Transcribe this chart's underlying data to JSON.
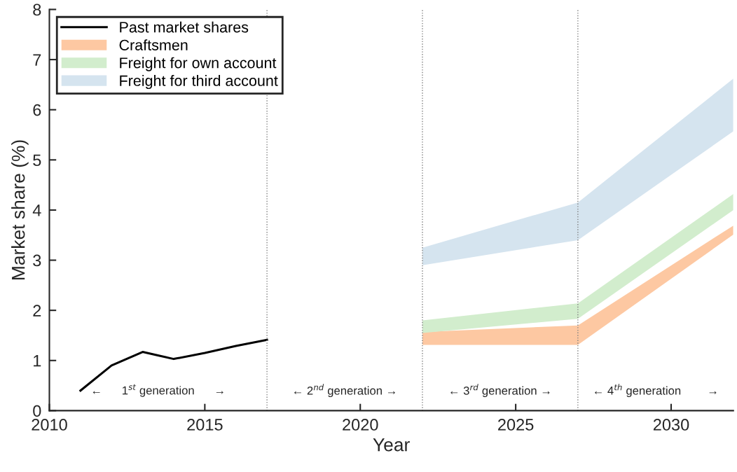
{
  "chart_data": {
    "type": "line",
    "xlabel": "Year",
    "ylabel": "Market share (%)",
    "xlim": [
      2010,
      2032
    ],
    "xticks": [
      2010,
      2015,
      2020,
      2025,
      2030
    ],
    "ylim": [
      0,
      8
    ],
    "yticks": [
      0,
      1,
      2,
      3,
      4,
      5,
      6,
      7,
      8
    ],
    "grid": false,
    "legend": "top left",
    "line_style": "solid",
    "marker": "none",
    "series": [
      {
        "name": "Past market shares",
        "color": "#000000",
        "x": [
          2011,
          2012,
          2013,
          2014,
          2015,
          2016,
          2017
        ],
        "values": [
          0.4,
          0.9,
          1.17,
          1.03,
          1.15,
          1.29,
          1.41
        ]
      },
      {
        "name": "Craftsmen",
        "type": "area",
        "color": "#fdc8a2",
        "x": [
          2022,
          2027,
          2032
        ],
        "values": [
          null,
          null,
          null
        ],
        "lower": [
          1.31,
          1.31,
          3.51
        ],
        "upper": [
          1.57,
          1.7,
          3.69
        ]
      },
      {
        "name": "Freight for own account",
        "type": "area",
        "color": "#d2edcd",
        "x": [
          2022,
          2027,
          2032
        ],
        "values": [
          null,
          null,
          null
        ],
        "lower": [
          1.55,
          1.83,
          4.0
        ],
        "upper": [
          1.8,
          2.14,
          4.32
        ]
      },
      {
        "name": "Freight for third account",
        "type": "area",
        "color": "#d5e4ef",
        "x": [
          2022,
          2027,
          2032
        ],
        "values": [
          null,
          null,
          null
        ],
        "lower": [
          2.9,
          3.4,
          5.57
        ],
        "upper": [
          3.25,
          4.15,
          6.62
        ]
      }
    ],
    "ref_lines": [
      {
        "axis": "x",
        "value": 2017,
        "color": "#808080",
        "line_style": "dotted"
      },
      {
        "axis": "x",
        "value": 2022,
        "color": "#808080",
        "line_style": "dotted"
      },
      {
        "axis": "x",
        "value": 2027,
        "color": "#808080",
        "line_style": "dotted"
      }
    ],
    "annotations": [
      "←      1$^{st}$ generation      →",
      "← 2$^{nd}$ generation →",
      "← 3$^{rd}$ generation →",
      "← 4$^{th}$ generation        →"
    ]
  }
}
